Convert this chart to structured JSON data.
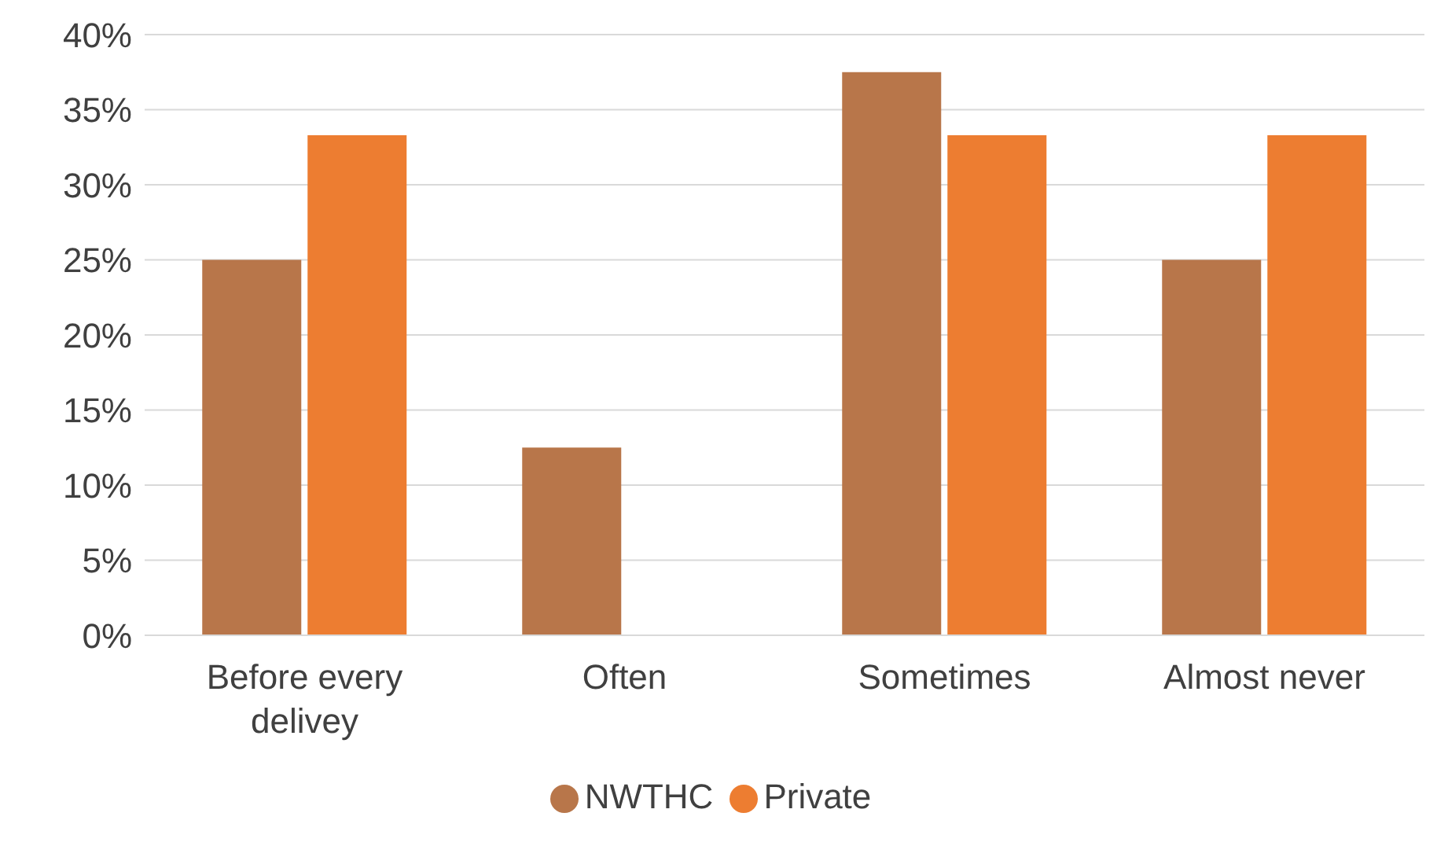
{
  "chart_data": {
    "type": "bar",
    "categories": [
      "Before every delivey",
      "Often",
      "Sometimes",
      "Almost never"
    ],
    "series": [
      {
        "name": "NWTHC",
        "color": "#b8764a",
        "values": [
          25,
          12.5,
          37.5,
          25
        ]
      },
      {
        "name": "Private",
        "color": "#ed7d31",
        "values": [
          33.3,
          0,
          33.3,
          33.3
        ]
      }
    ],
    "ylim": [
      0,
      40
    ],
    "yticks": [
      {
        "value": 0,
        "label": "0%"
      },
      {
        "value": 5,
        "label": "5%"
      },
      {
        "value": 10,
        "label": "10%"
      },
      {
        "value": 15,
        "label": "15%"
      },
      {
        "value": 20,
        "label": "20%"
      },
      {
        "value": 25,
        "label": "25%"
      },
      {
        "value": 30,
        "label": "30%"
      },
      {
        "value": 35,
        "label": "35%"
      },
      {
        "value": 40,
        "label": "40%"
      }
    ],
    "grid": "y",
    "legend": "bottom"
  }
}
